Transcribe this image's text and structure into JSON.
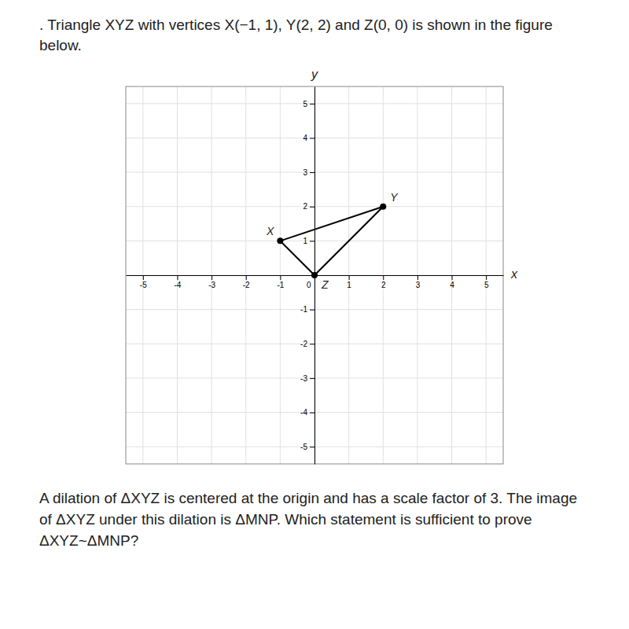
{
  "chart_data": {
    "type": "line",
    "title": ". Triangle XYZ with vertices X(−1, 1), Y(2, 2) and Z(0, 0) is shown in the figure below.",
    "xlabel": "x",
    "ylabel": "y",
    "x": [
      -1,
      2,
      0
    ],
    "values": [
      1,
      2,
      0
    ],
    "color": "#000000",
    "marker": "circle",
    "xlim": [
      -5.5,
      5.5
    ],
    "ylim": [
      -5.5,
      5.5
    ],
    "xticks": [
      -5,
      -4,
      -3,
      -2,
      -1,
      0,
      1,
      2,
      3,
      4,
      5
    ],
    "yticks": [
      -5,
      -4,
      -3,
      -2,
      -1,
      1,
      2,
      3,
      4,
      5
    ],
    "grid": true,
    "annotations": [
      {
        "text": "X",
        "x": -1,
        "y": 1
      },
      {
        "text": "Y",
        "x": 2,
        "y": 2
      },
      {
        "text": "Z",
        "x": 0,
        "y": 0
      },
      {
        "text": "A dilation of ΔXYZ is centered at the origin and has a scale factor of 3. The image of ΔXYZ under this dilation is ΔMNP. Which statement is sufficient to prove ΔXYZ~ΔMNP?"
      }
    ]
  }
}
